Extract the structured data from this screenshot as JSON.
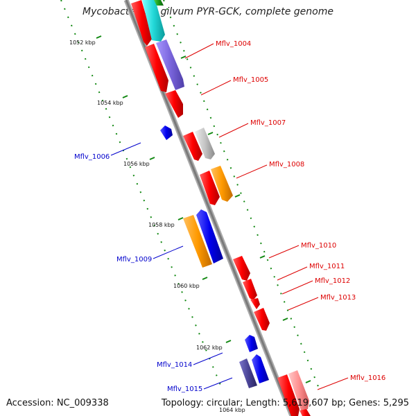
{
  "title": "Mycobacterium gilvum PYR-GCK, complete genome",
  "footer": {
    "accession": "Accession: NC_009338",
    "summary": "Topology: circular; Length: 5,619,607 bp; Genes: 5,295"
  },
  "colors": {
    "forward_label": "#dd0000",
    "reverse_label": "#0000cc",
    "backbone": "#888888",
    "tick": "#118811"
  },
  "kbp_labels": [
    "1052 kbp",
    "1054 kbp",
    "1056 kbp",
    "1058 kbp",
    "1060 kbp",
    "1062 kbp",
    "1064 kbp"
  ],
  "gene_labels": [
    "Mflv_1004",
    "Mflv_1005",
    "Mflv_1007",
    "Mflv_1008",
    "Mflv_1010",
    "Mflv_1011",
    "Mflv_1012",
    "Mflv_1013",
    "Mflv_1016",
    "Mflv_1006",
    "Mflv_1009",
    "Mflv_1014",
    "Mflv_1015"
  ]
}
